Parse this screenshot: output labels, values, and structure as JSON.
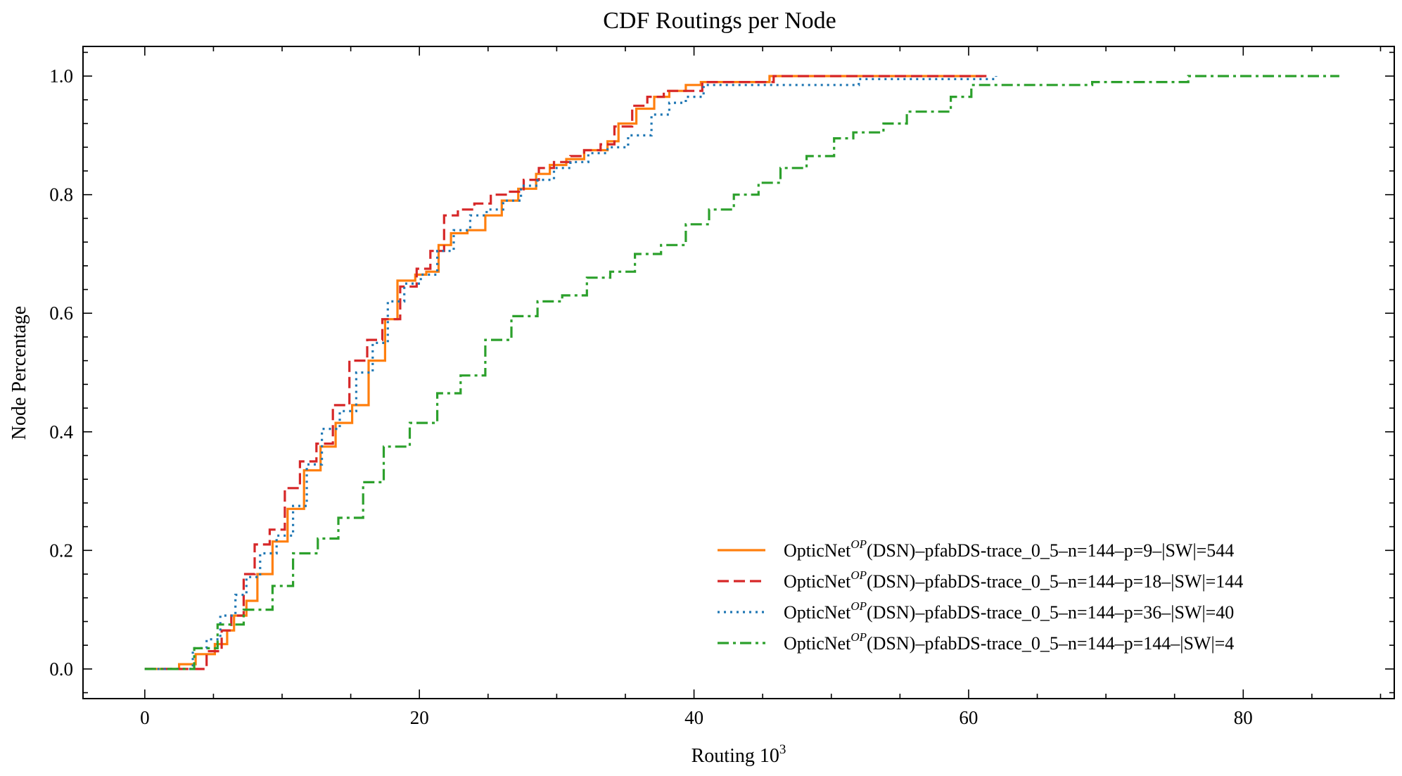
{
  "chart_data": {
    "type": "line",
    "step": true,
    "title": "CDF Routings per Node",
    "xlabel": "Routing 10",
    "xlabel_sup": "3",
    "ylabel": "Node Percentage",
    "xlim": [
      -4.5,
      91
    ],
    "ylim": [
      -0.05,
      1.05
    ],
    "xticks": [
      0,
      20,
      40,
      60,
      80
    ],
    "yticks": [
      0.0,
      0.2,
      0.4,
      0.6,
      0.8,
      1.0
    ],
    "xtick_labels": [
      "0",
      "20",
      "40",
      "60",
      "80"
    ],
    "ytick_labels": [
      "0.0",
      "0.2",
      "0.4",
      "0.6",
      "0.8",
      "1.0"
    ],
    "grid": false,
    "legend_position": "bottom-right",
    "series": [
      {
        "name": "OpticNet",
        "sup": "OP",
        "name_rest": "(DSN)–pfabDS-trace_0_5–n=144–p=9–|SW|=544",
        "color": "#ff7f0e",
        "dash": "solid",
        "x": [
          0,
          2.5,
          3.7,
          5.1,
          6.0,
          6.5,
          7.4,
          8.2,
          9.3,
          10.4,
          11.6,
          12.8,
          13.9,
          15.1,
          16.3,
          17.5,
          18.4,
          19.7,
          20.5,
          21.4,
          22.3,
          23.5,
          24.8,
          26.0,
          27.2,
          28.5,
          29.5,
          30.7,
          32.0,
          33.7,
          34.5,
          35.8,
          37.1,
          38.2,
          39.4,
          40.5,
          45.5,
          61.0
        ],
        "y": [
          0,
          0.008,
          0.025,
          0.042,
          0.065,
          0.09,
          0.115,
          0.16,
          0.215,
          0.27,
          0.335,
          0.375,
          0.415,
          0.445,
          0.52,
          0.59,
          0.655,
          0.665,
          0.67,
          0.715,
          0.735,
          0.74,
          0.765,
          0.79,
          0.81,
          0.835,
          0.85,
          0.86,
          0.875,
          0.89,
          0.92,
          0.945,
          0.965,
          0.975,
          0.985,
          0.99,
          1.0,
          1.0
        ]
      },
      {
        "name": "OpticNet",
        "sup": "OP",
        "name_rest": "(DSN)–pfabDS-trace_0_5–n=144–p=18–|SW|=144",
        "color": "#d62728",
        "dash": "dashed",
        "x": [
          0,
          4.5,
          5.6,
          6.3,
          7.2,
          8.0,
          9.1,
          10.2,
          11.3,
          12.5,
          13.7,
          14.9,
          16.2,
          17.3,
          18.6,
          19.8,
          20.8,
          21.8,
          22.8,
          24.0,
          25.2,
          26.4,
          27.6,
          28.7,
          29.8,
          31.0,
          32.0,
          33.2,
          34.2,
          35.5,
          36.6,
          37.8,
          40.6,
          45.8,
          61.3
        ],
        "y": [
          0,
          0.03,
          0.065,
          0.09,
          0.16,
          0.21,
          0.235,
          0.305,
          0.35,
          0.38,
          0.445,
          0.52,
          0.555,
          0.59,
          0.645,
          0.675,
          0.705,
          0.765,
          0.775,
          0.785,
          0.8,
          0.805,
          0.825,
          0.845,
          0.855,
          0.865,
          0.875,
          0.885,
          0.915,
          0.95,
          0.965,
          0.975,
          0.99,
          1.0,
          1.0
        ]
      },
      {
        "name": "OpticNet",
        "sup": "OP",
        "name_rest": "(DSN)–pfabDS-trace_0_5–n=144–p=36–|SW|=40",
        "color": "#1f77b4",
        "dash": "dotted",
        "x": [
          0,
          3.5,
          4.5,
          5.5,
          6.6,
          7.4,
          8.4,
          9.6,
          10.8,
          11.8,
          12.9,
          14.2,
          15.4,
          16.6,
          17.7,
          18.9,
          20.1,
          21.3,
          22.5,
          23.7,
          24.9,
          26.1,
          27.4,
          28.6,
          29.8,
          31.0,
          32.3,
          33.7,
          35.2,
          36.9,
          38.2,
          39.4,
          40.7,
          52.0,
          62.0
        ],
        "y": [
          0,
          0.035,
          0.05,
          0.09,
          0.125,
          0.155,
          0.195,
          0.225,
          0.275,
          0.345,
          0.405,
          0.435,
          0.5,
          0.55,
          0.62,
          0.65,
          0.665,
          0.705,
          0.74,
          0.765,
          0.775,
          0.79,
          0.815,
          0.825,
          0.845,
          0.855,
          0.87,
          0.88,
          0.9,
          0.935,
          0.955,
          0.965,
          0.985,
          0.995,
          1.0
        ]
      },
      {
        "name": "OpticNet",
        "sup": "OP",
        "name_rest": "(DSN)–pfabDS-trace_0_5–n=144–p=144–|SW|=4",
        "color": "#2ca02c",
        "dash": "dashdot",
        "x": [
          0,
          3.6,
          5.3,
          7.2,
          9.3,
          10.8,
          12.6,
          14.1,
          15.9,
          17.4,
          19.3,
          21.3,
          23.0,
          24.8,
          26.7,
          28.6,
          30.4,
          32.2,
          33.9,
          35.7,
          37.6,
          39.4,
          41.1,
          42.9,
          44.7,
          46.3,
          48.2,
          50.2,
          51.6,
          53.8,
          55.5,
          56.9,
          58.7,
          60.2,
          61.6,
          69.0,
          76.0,
          87.0
        ],
        "y": [
          0,
          0.035,
          0.075,
          0.1,
          0.14,
          0.195,
          0.22,
          0.255,
          0.315,
          0.375,
          0.415,
          0.465,
          0.495,
          0.555,
          0.595,
          0.62,
          0.63,
          0.66,
          0.67,
          0.7,
          0.715,
          0.75,
          0.775,
          0.8,
          0.82,
          0.845,
          0.865,
          0.895,
          0.905,
          0.92,
          0.94,
          0.94,
          0.965,
          0.985,
          0.985,
          0.99,
          1.0,
          1.0
        ]
      }
    ]
  }
}
